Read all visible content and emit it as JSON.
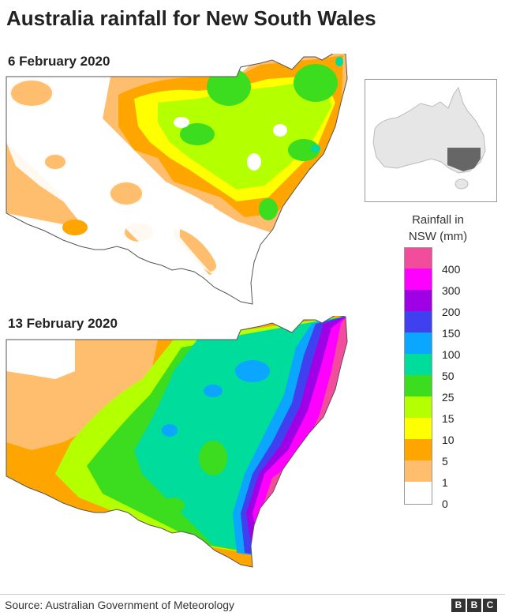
{
  "title": "Australia rainfall for New South Wales",
  "maps": [
    {
      "date": "6 February 2020"
    },
    {
      "date": "13 February 2020"
    }
  ],
  "inset": {
    "icon": "australia-nsw-locator-map",
    "highlight_color": "#666666",
    "land_color": "#e6e6e6"
  },
  "legend": {
    "title_line1": "Rainfall in",
    "title_line2": "NSW (mm)",
    "bands": [
      {
        "color": "#f24d9c"
      },
      {
        "color": "#ff00ff"
      },
      {
        "color": "#a000e6"
      },
      {
        "color": "#4040f0"
      },
      {
        "color": "#0aa6ff"
      },
      {
        "color": "#00dc9c"
      },
      {
        "color": "#3cdc1e"
      },
      {
        "color": "#b4ff00"
      },
      {
        "color": "#ffff00"
      },
      {
        "color": "#ffa500"
      },
      {
        "color": "#ffbe6e"
      },
      {
        "color": "#ffffff"
      }
    ],
    "labels": [
      "400",
      "300",
      "200",
      "150",
      "100",
      "50",
      "25",
      "15",
      "10",
      "5",
      "1",
      "0"
    ]
  },
  "footer": {
    "source": "Source: Australian Government of Meteorology",
    "logo_letters": [
      "B",
      "B",
      "C"
    ]
  }
}
